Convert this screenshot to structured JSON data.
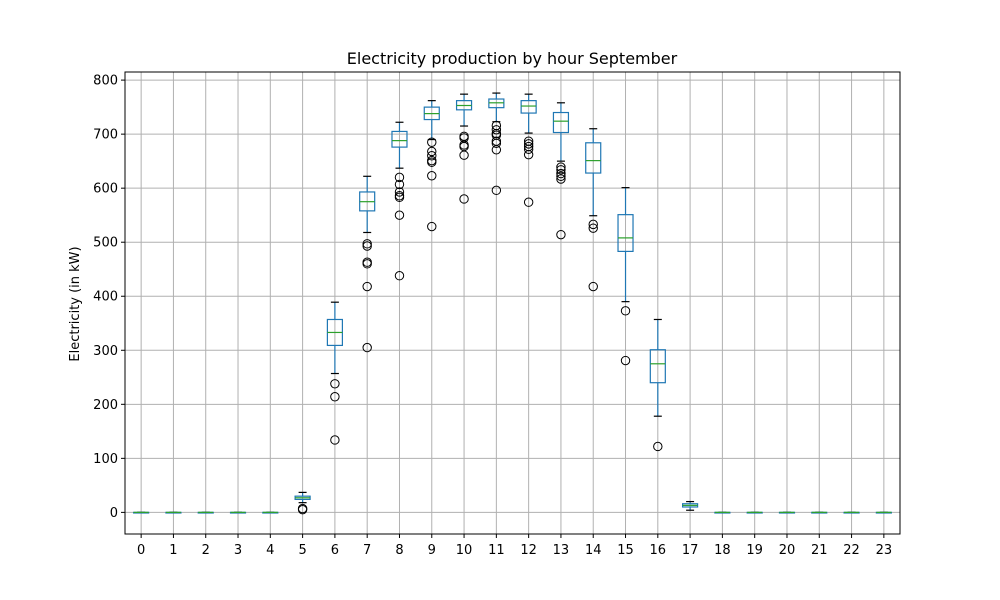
{
  "chart_data": {
    "type": "box",
    "title": "Electricity production by hour September",
    "xlabel": "",
    "ylabel": "Electricity (in kW)",
    "ylim": [
      -40,
      815
    ],
    "yticks": [
      0,
      100,
      200,
      300,
      400,
      500,
      600,
      700,
      800
    ],
    "grid": true,
    "colors": {
      "box": "#1f77b4",
      "median": "#2ca02c",
      "whisker": "#000000",
      "grid": "#b0b0b0",
      "flier": "#000000"
    },
    "categories": [
      "0",
      "1",
      "2",
      "3",
      "4",
      "5",
      "6",
      "7",
      "8",
      "9",
      "10",
      "11",
      "12",
      "13",
      "14",
      "15",
      "16",
      "17",
      "18",
      "19",
      "20",
      "21",
      "22",
      "23"
    ],
    "boxes": [
      {
        "q1": 0,
        "median": 0,
        "q3": 0,
        "whislo": 0,
        "whishi": 0,
        "fliers": []
      },
      {
        "q1": 0,
        "median": 0,
        "q3": 0,
        "whislo": 0,
        "whishi": 0,
        "fliers": []
      },
      {
        "q1": 0,
        "median": 0,
        "q3": 0,
        "whislo": 0,
        "whishi": 0,
        "fliers": []
      },
      {
        "q1": 0,
        "median": 0,
        "q3": 0,
        "whislo": 0,
        "whishi": 0,
        "fliers": []
      },
      {
        "q1": 0,
        "median": 0,
        "q3": 0,
        "whislo": 0,
        "whishi": 0,
        "fliers": []
      },
      {
        "q1": 24,
        "median": 27,
        "q3": 30,
        "whislo": 18,
        "whishi": 37,
        "fliers": [
          5,
          7
        ]
      },
      {
        "q1": 309,
        "median": 333,
        "q3": 357,
        "whislo": 257,
        "whishi": 389,
        "fliers": [
          238,
          214,
          134
        ]
      },
      {
        "q1": 558,
        "median": 575,
        "q3": 593,
        "whislo": 518,
        "whishi": 622,
        "fliers": [
          497,
          493,
          463,
          460,
          418,
          305
        ]
      },
      {
        "q1": 676,
        "median": 688,
        "q3": 705,
        "whislo": 637,
        "whishi": 722,
        "fliers": [
          620,
          607,
          593,
          586,
          583,
          550,
          438
        ]
      },
      {
        "q1": 727,
        "median": 738,
        "q3": 750,
        "whislo": 690,
        "whishi": 762,
        "fliers": [
          685,
          668,
          660,
          651,
          648,
          623,
          529
        ]
      },
      {
        "q1": 745,
        "median": 753,
        "q3": 762,
        "whislo": 715,
        "whishi": 774,
        "fliers": [
          696,
          693,
          680,
          677,
          661,
          580
        ]
      },
      {
        "q1": 749,
        "median": 758,
        "q3": 765,
        "whislo": 723,
        "whishi": 776,
        "fliers": [
          716,
          708,
          701,
          698,
          687,
          683,
          671,
          596
        ]
      },
      {
        "q1": 739,
        "median": 752,
        "q3": 762,
        "whislo": 702,
        "whishi": 774,
        "fliers": [
          687,
          682,
          677,
          672,
          662,
          574
        ]
      },
      {
        "q1": 703,
        "median": 724,
        "q3": 740,
        "whislo": 650,
        "whishi": 758,
        "fliers": [
          639,
          634,
          627,
          622,
          617,
          514
        ]
      },
      {
        "q1": 628,
        "median": 651,
        "q3": 684,
        "whislo": 549,
        "whishi": 710,
        "fliers": [
          533,
          526,
          418
        ]
      },
      {
        "q1": 483,
        "median": 508,
        "q3": 551,
        "whislo": 390,
        "whishi": 601,
        "fliers": [
          373,
          281
        ]
      },
      {
        "q1": 240,
        "median": 275,
        "q3": 301,
        "whislo": 178,
        "whishi": 357,
        "fliers": [
          122
        ]
      },
      {
        "q1": 10,
        "median": 13,
        "q3": 16,
        "whislo": 4,
        "whishi": 20,
        "fliers": []
      },
      {
        "q1": 0,
        "median": 0,
        "q3": 0,
        "whislo": 0,
        "whishi": 0,
        "fliers": []
      },
      {
        "q1": 0,
        "median": 0,
        "q3": 0,
        "whislo": 0,
        "whishi": 0,
        "fliers": []
      },
      {
        "q1": 0,
        "median": 0,
        "q3": 0,
        "whislo": 0,
        "whishi": 0,
        "fliers": []
      },
      {
        "q1": 0,
        "median": 0,
        "q3": 0,
        "whislo": 0,
        "whishi": 0,
        "fliers": []
      },
      {
        "q1": 0,
        "median": 0,
        "q3": 0,
        "whislo": 0,
        "whishi": 0,
        "fliers": []
      },
      {
        "q1": 0,
        "median": 0,
        "q3": 0,
        "whislo": 0,
        "whishi": 0,
        "fliers": []
      }
    ]
  }
}
